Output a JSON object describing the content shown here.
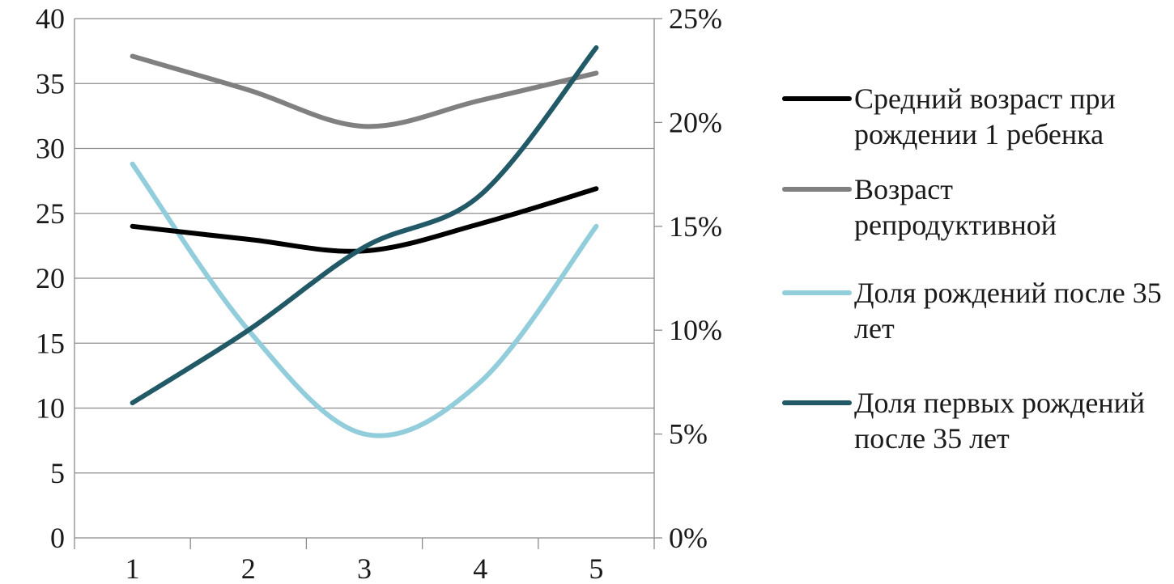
{
  "chart_data": {
    "type": "line",
    "categories": [
      "1",
      "2",
      "3",
      "4",
      "5"
    ],
    "y_left": {
      "ticks": [
        "0",
        "5",
        "10",
        "15",
        "20",
        "25",
        "30",
        "35",
        "40"
      ],
      "lim": [
        0,
        40
      ]
    },
    "y_right": {
      "ticks": [
        "0%",
        "5%",
        "10%",
        "15%",
        "20%",
        "25%"
      ],
      "lim": [
        0,
        0.25
      ]
    },
    "grid": true,
    "legend_position": "right",
    "series": [
      {
        "name": "Средний возраст при рождении 1 ребенка",
        "axis": "left",
        "color": "#000000",
        "values": [
          24.0,
          23.0,
          22.1,
          24.2,
          26.9
        ]
      },
      {
        "name": "Возраст репродуктивной",
        "axis": "left",
        "color": "#808080",
        "values": [
          37.1,
          34.5,
          31.7,
          33.7,
          35.8
        ]
      },
      {
        "name": "Доля рождений после 35 лет",
        "axis": "right",
        "color": "#92cddc",
        "values": [
          0.18,
          0.1,
          0.05,
          0.075,
          0.15
        ]
      },
      {
        "name": "Доля первых рождений после 35 лет",
        "axis": "right",
        "color": "#215967",
        "values": [
          0.065,
          0.1,
          0.14,
          0.165,
          0.236
        ]
      }
    ]
  }
}
